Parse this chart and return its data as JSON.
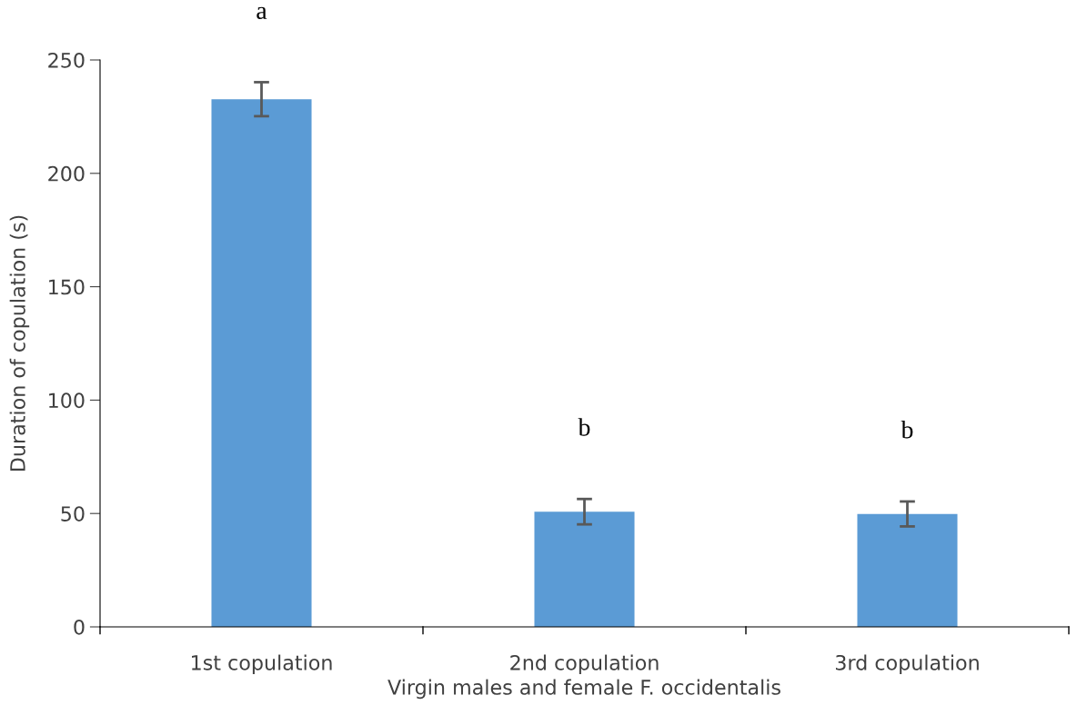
{
  "chart_data": {
    "type": "bar",
    "xlabel": "Virgin males and female F. occidentalis",
    "ylabel": "Duration of copulation (s)",
    "categories": [
      "1st copulation",
      "2nd copulation",
      "3rd copulation"
    ],
    "values": [
      232.7,
      50.8,
      49.8
    ],
    "errors": [
      7.5,
      5.6,
      5.5
    ],
    "color": "#5b9bd5",
    "ylim": [
      0,
      250
    ],
    "yticks": [
      0,
      50,
      100,
      150,
      200,
      250
    ],
    "grid": false,
    "legend": false,
    "annotations": [
      "a",
      "b",
      "b"
    ]
  }
}
